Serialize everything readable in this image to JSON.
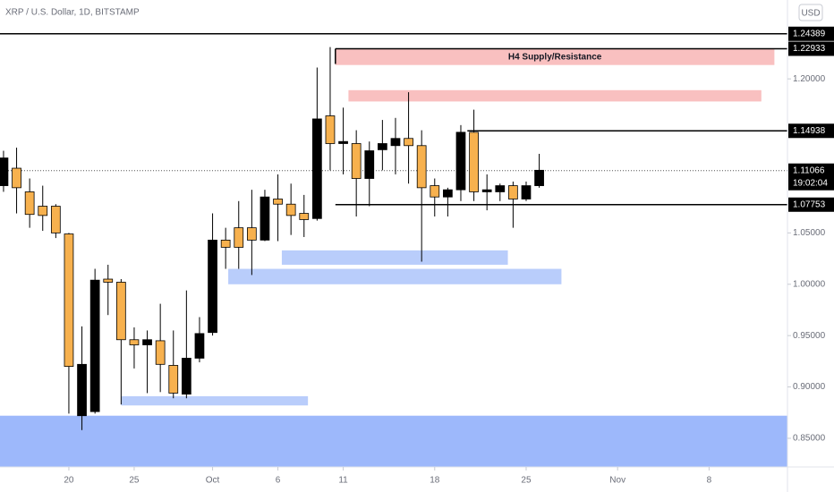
{
  "chart_data": {
    "type": "candlestick",
    "title": "XRP / U.S. Dollar, 1D, BITSTAMP",
    "currency": "USD",
    "up_color": "#000000",
    "down_color": "#f7b14e",
    "x": [
      0,
      1,
      2,
      3,
      4,
      5,
      6,
      7,
      8,
      9,
      10,
      11,
      12,
      13,
      14,
      15,
      16,
      17,
      18,
      19,
      20,
      21,
      22,
      23,
      24,
      25,
      26,
      27,
      28,
      29,
      30,
      31,
      32,
      33,
      34,
      35,
      36,
      37,
      38,
      39,
      40,
      41
    ],
    "open": [
      1.096,
      1.113,
      1.09,
      1.076,
      1.076,
      1.049,
      0.872,
      0.876,
      1.005,
      1.002,
      0.946,
      0.941,
      0.945,
      0.921,
      0.893,
      0.928,
      0.953,
      1.043,
      1.055,
      1.055,
      1.043,
      1.083,
      1.078,
      1.069,
      1.064,
      1.164,
      1.137,
      1.137,
      1.103,
      1.131,
      1.135,
      1.142,
      1.135,
      1.096,
      1.085,
      1.092,
      1.148,
      1.09,
      1.09,
      1.096,
      1.083,
      1.096
    ],
    "high": [
      1.13,
      1.133,
      1.103,
      1.096,
      1.078,
      1.05,
      0.959,
      1.015,
      1.019,
      1.005,
      0.958,
      0.955,
      0.981,
      0.955,
      0.994,
      0.968,
      1.069,
      1.055,
      1.081,
      1.092,
      1.092,
      1.107,
      1.098,
      1.087,
      1.211,
      1.231,
      1.172,
      1.15,
      1.139,
      1.16,
      1.162,
      1.187,
      1.15,
      1.103,
      1.094,
      1.155,
      1.17,
      1.107,
      1.098,
      1.1,
      1.1,
      1.127
    ],
    "low": [
      1.09,
      1.069,
      1.055,
      1.052,
      1.045,
      0.874,
      0.858,
      0.874,
      0.97,
      0.883,
      0.918,
      0.894,
      0.895,
      0.889,
      0.889,
      0.924,
      0.95,
      1.015,
      1.015,
      1.009,
      1.042,
      1.042,
      1.048,
      1.046,
      1.062,
      1.111,
      1.107,
      1.066,
      1.076,
      1.111,
      1.107,
      1.098,
      1.022,
      1.066,
      1.066,
      1.081,
      1.081,
      1.072,
      1.081,
      1.055,
      1.081,
      1.094
    ],
    "close": [
      1.123,
      1.094,
      1.068,
      1.067,
      1.05,
      0.92,
      0.922,
      1.004,
      1.002,
      0.946,
      0.941,
      0.946,
      0.922,
      0.894,
      0.928,
      0.952,
      1.043,
      1.036,
      1.036,
      1.043,
      1.085,
      1.078,
      1.067,
      1.063,
      1.161,
      1.137,
      1.139,
      1.103,
      1.13,
      1.137,
      1.142,
      1.135,
      1.094,
      1.085,
      1.092,
      1.148,
      1.09,
      1.092,
      1.096,
      1.083,
      1.096,
      1.111
    ],
    "xlim": [
      -0.27,
      60
    ],
    "xticks": [
      {
        "value": 5,
        "label": "20"
      },
      {
        "value": 10,
        "label": "25"
      },
      {
        "value": 16,
        "label": "Oct"
      },
      {
        "value": 21,
        "label": "6"
      },
      {
        "value": 26,
        "label": "11"
      },
      {
        "value": 33,
        "label": "18"
      },
      {
        "value": 40,
        "label": "25"
      },
      {
        "value": 47,
        "label": "Nov"
      },
      {
        "value": 54,
        "label": "8"
      }
    ],
    "ylim": [
      0.8221,
      1.2768
    ],
    "yticks": [
      {
        "value": 0.85,
        "label": "0.85000"
      },
      {
        "value": 0.9,
        "label": "0.90000"
      },
      {
        "value": 0.95,
        "label": "0.95000"
      },
      {
        "value": 1.0,
        "label": "1.00000"
      },
      {
        "value": 1.05,
        "label": "1.05000"
      },
      {
        "value": 1.2,
        "label": "1.20000"
      }
    ],
    "levels": [
      {
        "value": 1.24389,
        "x0": -0.27
      },
      {
        "value": 1.22933,
        "x0": 25.4
      },
      {
        "value": 1.14938,
        "x0": 35.5
      },
      {
        "value": 1.07753,
        "x0": 25.4
      }
    ],
    "current_price": {
      "value": 1.11066,
      "countdown": "19:02:04"
    },
    "zones": [
      {
        "x0": 25.4,
        "x1": 59,
        "y0": 1.2135,
        "y1": 1.229,
        "color": "#f9c0c0",
        "label": "H4 Supply/Resistance"
      },
      {
        "x0": 26.4,
        "x1": 58,
        "y0": 1.178,
        "y1": 1.189,
        "color": "#f9c0c0"
      },
      {
        "x0": 21.3,
        "x1": 38.6,
        "y0": 1.019,
        "y1": 1.033,
        "color": "#b9cdfb"
      },
      {
        "x0": 17.2,
        "x1": 42.7,
        "y0": 1.0,
        "y1": 1.015,
        "color": "#b9cdfb"
      },
      {
        "x0": 9.0,
        "x1": 23.3,
        "y0": 0.882,
        "y1": 0.891,
        "color": "#b9cdfb"
      },
      {
        "x0": -0.27,
        "x1": 60,
        "y0": 0.822,
        "y1": 0.872,
        "color": "#9db8fb"
      }
    ]
  }
}
